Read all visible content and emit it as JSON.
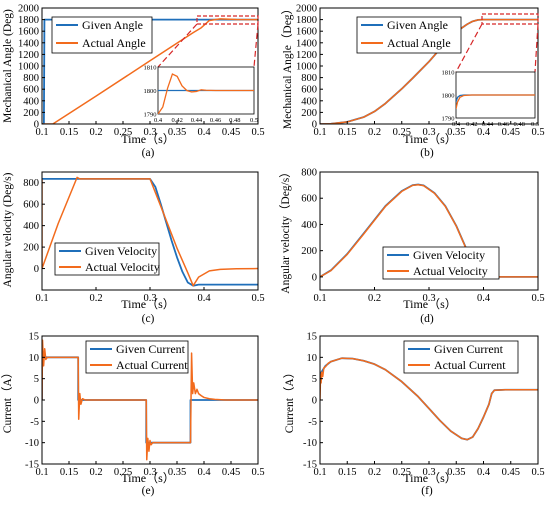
{
  "figure": {
    "colors": {
      "given": "#1f6fba",
      "actual": "#f26b1d",
      "zoom": "#d62728",
      "axis": "#000000"
    },
    "subplots": [
      {
        "id": "a",
        "caption": "(a)"
      },
      {
        "id": "b",
        "caption": "(b)"
      },
      {
        "id": "c",
        "caption": "(c)"
      },
      {
        "id": "d",
        "caption": "(d)"
      },
      {
        "id": "e",
        "caption": "(e)"
      },
      {
        "id": "f",
        "caption": "(f)"
      }
    ]
  },
  "chart_data": [
    {
      "id": "a",
      "type": "line",
      "xlabel": "Time（s）",
      "ylabel": "Mechanical Angle (Deg)",
      "xlim": [
        0.1,
        0.5
      ],
      "ylim": [
        0,
        2000
      ],
      "xticks": [
        "0.1",
        "0.15",
        "0.2",
        "0.25",
        "0.3",
        "0.35",
        "0.4",
        "0.45",
        "0.5"
      ],
      "yticks": [
        "0",
        "200",
        "400",
        "600",
        "800",
        "1000",
        "1200",
        "1400",
        "1600",
        "1800",
        "2000"
      ],
      "legend_position": "top-left",
      "series": [
        {
          "name": "Given Angle",
          "role": "given",
          "x": [
            0.1,
            0.1035,
            0.1045,
            0.5
          ],
          "y": [
            0,
            0,
            1800,
            1800
          ]
        },
        {
          "name": "Actual Angle",
          "role": "actual",
          "x": [
            0.1,
            0.12,
            0.2,
            0.3,
            0.36,
            0.38,
            0.395,
            0.41,
            0.43,
            0.46,
            0.5
          ],
          "y": [
            0,
            0,
            480,
            1090,
            1455,
            1575,
            1660,
            1785,
            1812,
            1801,
            1800
          ]
        }
      ],
      "inset": {
        "xlim": [
          0.4,
          0.5
        ],
        "ylim": [
          1790,
          1810
        ],
        "xticks": [
          "0.4",
          "0.42",
          "0.44",
          "0.46",
          "0.48",
          "0.5"
        ],
        "yticks": [
          "1790",
          "1800",
          "1810"
        ],
        "series": [
          {
            "role": "given",
            "x": [
              0.4,
              0.5
            ],
            "y": [
              1800,
              1800
            ]
          },
          {
            "role": "actual",
            "x": [
              0.4,
              0.405,
              0.41,
              0.415,
              0.42,
              0.425,
              0.43,
              0.435,
              0.44,
              0.445,
              0.45,
              0.46,
              0.5
            ],
            "y": [
              1790,
              1793,
              1801,
              1807,
              1806,
              1802,
              1800,
              1799.4,
              1799.6,
              1800.3,
              1800.1,
              1800,
              1800
            ]
          }
        ]
      }
    },
    {
      "id": "b",
      "type": "line",
      "xlabel": "Time（s）",
      "ylabel": "Mechanical Angle（Deg）",
      "xlim": [
        0.1,
        0.5
      ],
      "ylim": [
        0,
        2000
      ],
      "xticks": [
        "0.1",
        "0.15",
        "0.2",
        "0.25",
        "0.3",
        "0.35",
        "0.4",
        "0.45",
        "0.5"
      ],
      "yticks": [
        "0",
        "200",
        "400",
        "600",
        "800",
        "1000",
        "1200",
        "1400",
        "1600",
        "1800",
        "2000"
      ],
      "legend_position": "top-center",
      "series": [
        {
          "name": "Given Angle",
          "role": "given",
          "x": [
            0.1,
            0.12,
            0.15,
            0.18,
            0.2,
            0.22,
            0.25,
            0.27,
            0.3,
            0.33,
            0.35,
            0.37,
            0.38,
            0.39,
            0.4,
            0.5
          ],
          "y": [
            0,
            4,
            36,
            118,
            216,
            354,
            606,
            790,
            1075,
            1400,
            1590,
            1720,
            1770,
            1795,
            1800,
            1800
          ]
        },
        {
          "name": "Actual Angle",
          "role": "actual",
          "x": [
            0.1,
            0.12,
            0.15,
            0.18,
            0.2,
            0.22,
            0.25,
            0.27,
            0.3,
            0.33,
            0.35,
            0.37,
            0.38,
            0.39,
            0.4,
            0.5
          ],
          "y": [
            0,
            4,
            36,
            118,
            216,
            354,
            606,
            790,
            1075,
            1400,
            1590,
            1720,
            1770,
            1795,
            1800,
            1800
          ]
        }
      ],
      "inset": {
        "xlim": [
          0.4,
          0.5
        ],
        "ylim": [
          1790,
          1810
        ],
        "xticks": [
          "0.4",
          "0.42",
          "0.44",
          "0.46",
          "0.48",
          "0.5"
        ],
        "yticks": [
          "1790",
          "1800",
          "1810"
        ],
        "series": [
          {
            "role": "given",
            "x": [
              0.4,
              0.402,
              0.405,
              0.41,
              0.42,
              0.5
            ],
            "y": [
              1797,
              1799,
              1799.8,
              1800,
              1800,
              1800
            ]
          },
          {
            "role": "actual",
            "x": [
              0.4,
              0.402,
              0.405,
              0.41,
              0.42,
              0.5
            ],
            "y": [
              1794,
              1797,
              1799,
              1799.8,
              1800,
              1800
            ]
          }
        ]
      }
    },
    {
      "id": "c",
      "type": "line",
      "xlabel": "Time（s）",
      "ylabel": "Angular velocity (Deg/s)",
      "xlim": [
        0.1,
        0.5
      ],
      "ylim": [
        -200,
        900
      ],
      "xticks": [
        "0.1",
        "0.2",
        "0.3",
        "0.4",
        "0.5"
      ],
      "yticks": [
        "0",
        "200",
        "400",
        "600",
        "800"
      ],
      "legend_position": "bottom-left",
      "series": [
        {
          "name": "Given Velocity",
          "role": "given",
          "x": [
            0.1,
            0.3,
            0.31,
            0.32,
            0.33,
            0.34,
            0.35,
            0.36,
            0.37,
            0.38,
            0.39,
            0.5
          ],
          "y": [
            836,
            836,
            760,
            600,
            430,
            260,
            105,
            -30,
            -130,
            -160,
            -150,
            -150
          ]
        },
        {
          "name": "Actual Velocity",
          "role": "actual",
          "x": [
            0.1,
            0.1,
            0.13,
            0.165,
            0.17,
            0.3,
            0.32,
            0.35,
            0.37,
            0.38,
            0.39,
            0.41,
            0.43,
            0.46,
            0.5
          ],
          "y": [
            836,
            0,
            420,
            850,
            836,
            836,
            580,
            190,
            -40,
            -160,
            -80,
            -22,
            -8,
            -2,
            0
          ]
        }
      ]
    },
    {
      "id": "d",
      "type": "line",
      "xlabel": "Time（s）",
      "ylabel": "Angular velocity（Deg/s）",
      "xlim": [
        0.1,
        0.5
      ],
      "ylim": [
        -100,
        800
      ],
      "xticks": [
        "0.1",
        "0.2",
        "0.3",
        "0.4",
        "0.5"
      ],
      "yticks": [
        "0",
        "200",
        "400",
        "600",
        "800"
      ],
      "legend_position": "bottom-right",
      "series": [
        {
          "name": "Given Velocity",
          "role": "given",
          "x": [
            0.1,
            0.12,
            0.15,
            0.18,
            0.2,
            0.22,
            0.25,
            0.27,
            0.28,
            0.29,
            0.31,
            0.33,
            0.35,
            0.37,
            0.38,
            0.39,
            0.4,
            0.5
          ],
          "y": [
            0,
            50,
            175,
            330,
            435,
            540,
            655,
            700,
            705,
            698,
            640,
            540,
            390,
            200,
            95,
            25,
            0,
            0
          ]
        },
        {
          "name": "Actual Velocity",
          "role": "actual",
          "x": [
            0.1,
            0.12,
            0.15,
            0.18,
            0.2,
            0.22,
            0.25,
            0.27,
            0.28,
            0.29,
            0.31,
            0.33,
            0.35,
            0.37,
            0.38,
            0.39,
            0.4,
            0.5
          ],
          "y": [
            0,
            48,
            172,
            326,
            432,
            537,
            652,
            698,
            703,
            696,
            638,
            538,
            388,
            198,
            93,
            23,
            0,
            0
          ]
        }
      ]
    },
    {
      "id": "e",
      "type": "line",
      "xlabel": "Time（s）",
      "ylabel": "Current（A）",
      "xlim": [
        0.1,
        0.5
      ],
      "ylim": [
        -15,
        15
      ],
      "xticks": [
        "0.1",
        "0.15",
        "0.2",
        "0.25",
        "0.3",
        "0.35",
        "0.4",
        "0.45",
        "0.5"
      ],
      "yticks": [
        "-15",
        "-10",
        "-5",
        "0",
        "5",
        "10",
        "15"
      ],
      "legend_position": "top-center",
      "series": [
        {
          "name": "Given Current",
          "role": "given",
          "x": [
            0.1,
            0.1,
            0.167,
            0.167,
            0.293,
            0.293,
            0.375,
            0.375,
            0.5
          ],
          "y": [
            0,
            10,
            10,
            0,
            0,
            -10,
            -10,
            0,
            0
          ]
        },
        {
          "name": "Actual Current",
          "role": "actual",
          "x": [
            0.1,
            0.101,
            0.103,
            0.105,
            0.107,
            0.11,
            0.167,
            0.168,
            0.17,
            0.172,
            0.175,
            0.18,
            0.293,
            0.294,
            0.296,
            0.298,
            0.3,
            0.302,
            0.305,
            0.375,
            0.377,
            0.379,
            0.381,
            0.384,
            0.387,
            0.39,
            0.395,
            0.4,
            0.41,
            0.42,
            0.44,
            0.5
          ],
          "y": [
            0,
            14,
            8,
            12,
            9.5,
            10,
            10,
            -4.5,
            1.5,
            -1,
            0.3,
            0,
            0,
            -14,
            -9,
            -12,
            -9.5,
            -10.5,
            -10,
            -10,
            11,
            1.5,
            4,
            1.5,
            2.5,
            1.5,
            1,
            0.6,
            0.3,
            0.15,
            0,
            0
          ]
        }
      ]
    },
    {
      "id": "f",
      "type": "line",
      "xlabel": "Time（s）",
      "ylabel": "Current（A）",
      "xlim": [
        0.1,
        0.5
      ],
      "ylim": [
        -15,
        15
      ],
      "xticks": [
        "0.1",
        "0.15",
        "0.2",
        "0.25",
        "0.3",
        "0.35",
        "0.4",
        "0.45",
        "0.5"
      ],
      "yticks": [
        "-15",
        "-10",
        "-5",
        "0",
        "5",
        "10",
        "15"
      ],
      "legend_position": "top-right",
      "series": [
        {
          "name": "Given Current",
          "role": "given",
          "x": [
            0.1,
            0.105,
            0.11,
            0.12,
            0.14,
            0.16,
            0.18,
            0.2,
            0.22,
            0.25,
            0.28,
            0.3,
            0.32,
            0.34,
            0.36,
            0.37,
            0.38,
            0.39,
            0.4,
            0.41,
            0.415,
            0.42,
            0.44,
            0.5
          ],
          "y": [
            6,
            7,
            8,
            9,
            9.8,
            9.7,
            9.2,
            8.4,
            7.1,
            4.3,
            0.8,
            -2,
            -4.8,
            -7.3,
            -9,
            -9.3,
            -8.7,
            -6.7,
            -4,
            -1,
            1.5,
            2.3,
            2.4,
            2.4
          ]
        },
        {
          "name": "Actual Current",
          "role": "actual",
          "x": [
            0.1,
            0.101,
            0.102,
            0.103,
            0.105,
            0.107,
            0.11,
            0.115,
            0.12,
            0.14,
            0.16,
            0.18,
            0.2,
            0.22,
            0.25,
            0.28,
            0.3,
            0.32,
            0.34,
            0.36,
            0.37,
            0.38,
            0.39,
            0.4,
            0.41,
            0.415,
            0.42,
            0.44,
            0.5
          ],
          "y": [
            0,
            6,
            4,
            6.5,
            5.5,
            7.5,
            7.8,
            8.6,
            9,
            9.8,
            9.7,
            9.2,
            8.4,
            7.1,
            4.3,
            0.8,
            -2,
            -4.8,
            -7.3,
            -9,
            -9.3,
            -8.7,
            -6.7,
            -4,
            -1,
            1.5,
            2.3,
            2.4,
            2.4
          ]
        }
      ]
    }
  ]
}
